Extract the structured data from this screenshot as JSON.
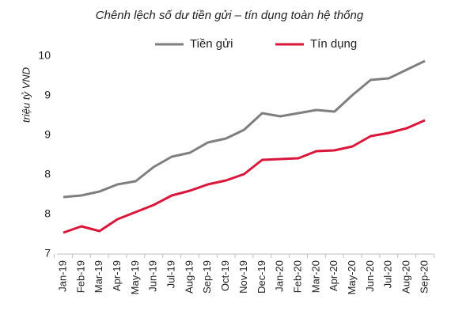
{
  "chart_data": {
    "type": "line",
    "title": "Chênh lệch số dư tiền gửi – tín dụng toàn hệ thống",
    "y_label": "triệu tỷ VND",
    "categories": [
      "Jan-19",
      "Feb-19",
      "Mar-19",
      "Apr-19",
      "May-19",
      "Jun-19",
      "Jul-19",
      "Aug-19",
      "Sep-19",
      "Oct-19",
      "Nov-19",
      "Dec-19",
      "Jan-20",
      "Feb-20",
      "Mar-20",
      "Apr-20",
      "May-20",
      "Jun-20",
      "Jul-20",
      "Aug-20",
      "Sep-20"
    ],
    "series": [
      {
        "name": "Tiền gửi",
        "color": "#7f7f7f",
        "values": [
          7.72,
          7.74,
          7.79,
          7.88,
          7.92,
          8.1,
          8.23,
          8.28,
          8.41,
          8.46,
          8.57,
          8.78,
          8.74,
          8.78,
          8.82,
          8.8,
          9.01,
          9.2,
          9.22,
          9.33,
          9.44
        ]
      },
      {
        "name": "Tín dụng",
        "color": "#d9173a",
        "values": [
          7.27,
          7.35,
          7.29,
          7.44,
          7.53,
          7.62,
          7.74,
          7.8,
          7.88,
          7.93,
          8.01,
          8.19,
          8.2,
          8.21,
          8.3,
          8.31,
          8.36,
          8.49,
          8.53,
          8.59,
          8.69
        ]
      }
    ],
    "ylim": [
      7,
      9.5
    ],
    "yticks": [
      7,
      {
        "value": 7.5,
        "label": "8"
      },
      {
        "value": 8,
        "label": "8"
      },
      {
        "value": 8.5,
        "label": "9"
      },
      {
        "value": 9,
        "label": "9"
      },
      {
        "value": 9.5,
        "label": "10"
      }
    ],
    "grid": false,
    "legend": "top"
  }
}
